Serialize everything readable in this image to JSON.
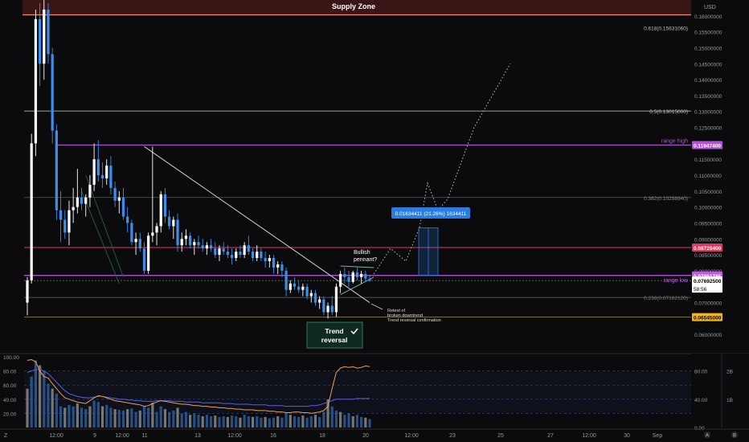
{
  "colors": {
    "background": "#0b0b0d",
    "candle_up": "#ffffff",
    "candle_down": "#3c8ee6",
    "supply_zone": "#3a1516",
    "supply_line": "#f28b82",
    "range_high": "#b452d6",
    "target_red": "#e0365f",
    "range_low": "#c258e6",
    "price_tag": "#ffffff",
    "yellow_tag": "#f0b429",
    "measure_blue": "#2a7de1",
    "trend_green": "#1f5b45",
    "rsi_orange": "#f0a04b",
    "rsi_blue": "#5a5fe0"
  },
  "chart_data": {
    "type": "candlestick",
    "title": "",
    "currency_label": "USD",
    "ylim": [
      0.055,
      0.165
    ],
    "y_ticks": [
      "0.06000000",
      "0.06500000",
      "0.07000000",
      "0.07500000",
      "0.08000000",
      "0.08500000",
      "0.09000000",
      "0.09500000",
      "0.10000000",
      "0.10500000",
      "0.11000000",
      "0.11500000",
      "0.12000000",
      "0.12500000",
      "0.13000000",
      "0.13500000",
      "0.14000000",
      "0.14500000",
      "0.15000000",
      "0.15500000",
      "0.16000000"
    ],
    "x_ticks": [
      "12:00",
      "9",
      "12:00",
      "11",
      "13",
      "12:00",
      "16",
      "18",
      "20",
      "12:00",
      "23",
      "25",
      "27",
      "12:00",
      "30",
      "Sep"
    ],
    "candles": [
      {
        "o": 0.07,
        "h": 0.078,
        "l": 0.066,
        "c": 0.077
      },
      {
        "o": 0.077,
        "h": 0.123,
        "l": 0.076,
        "c": 0.12
      },
      {
        "o": 0.12,
        "h": 0.162,
        "l": 0.116,
        "c": 0.159
      },
      {
        "o": 0.159,
        "h": 0.164,
        "l": 0.138,
        "c": 0.145
      },
      {
        "o": 0.145,
        "h": 0.165,
        "l": 0.14,
        "c": 0.162
      },
      {
        "o": 0.162,
        "h": 0.164,
        "l": 0.145,
        "c": 0.148
      },
      {
        "o": 0.148,
        "h": 0.15,
        "l": 0.12,
        "c": 0.124
      },
      {
        "o": 0.124,
        "h": 0.126,
        "l": 0.096,
        "c": 0.099
      },
      {
        "o": 0.099,
        "h": 0.105,
        "l": 0.089,
        "c": 0.096
      },
      {
        "o": 0.096,
        "h": 0.099,
        "l": 0.09,
        "c": 0.092
      },
      {
        "o": 0.092,
        "h": 0.102,
        "l": 0.088,
        "c": 0.099
      },
      {
        "o": 0.099,
        "h": 0.106,
        "l": 0.095,
        "c": 0.1
      },
      {
        "o": 0.1,
        "h": 0.112,
        "l": 0.098,
        "c": 0.103
      },
      {
        "o": 0.103,
        "h": 0.106,
        "l": 0.099,
        "c": 0.101
      },
      {
        "o": 0.101,
        "h": 0.104,
        "l": 0.097,
        "c": 0.103
      },
      {
        "o": 0.103,
        "h": 0.11,
        "l": 0.1,
        "c": 0.107
      },
      {
        "o": 0.107,
        "h": 0.12,
        "l": 0.105,
        "c": 0.115
      },
      {
        "o": 0.115,
        "h": 0.121,
        "l": 0.108,
        "c": 0.11
      },
      {
        "o": 0.11,
        "h": 0.114,
        "l": 0.106,
        "c": 0.109
      },
      {
        "o": 0.109,
        "h": 0.115,
        "l": 0.107,
        "c": 0.113
      },
      {
        "o": 0.113,
        "h": 0.116,
        "l": 0.104,
        "c": 0.106
      },
      {
        "o": 0.106,
        "h": 0.108,
        "l": 0.1,
        "c": 0.102
      },
      {
        "o": 0.102,
        "h": 0.105,
        "l": 0.098,
        "c": 0.103
      },
      {
        "o": 0.103,
        "h": 0.106,
        "l": 0.096,
        "c": 0.097
      },
      {
        "o": 0.097,
        "h": 0.1,
        "l": 0.092,
        "c": 0.095
      },
      {
        "o": 0.095,
        "h": 0.096,
        "l": 0.088,
        "c": 0.089
      },
      {
        "o": 0.089,
        "h": 0.092,
        "l": 0.085,
        "c": 0.09
      },
      {
        "o": 0.09,
        "h": 0.092,
        "l": 0.086,
        "c": 0.087
      },
      {
        "o": 0.087,
        "h": 0.089,
        "l": 0.079,
        "c": 0.08
      },
      {
        "o": 0.08,
        "h": 0.092,
        "l": 0.079,
        "c": 0.091
      },
      {
        "o": 0.091,
        "h": 0.119,
        "l": 0.089,
        "c": 0.092
      },
      {
        "o": 0.092,
        "h": 0.095,
        "l": 0.088,
        "c": 0.094
      },
      {
        "o": 0.094,
        "h": 0.105,
        "l": 0.092,
        "c": 0.104
      },
      {
        "o": 0.104,
        "h": 0.106,
        "l": 0.095,
        "c": 0.097
      },
      {
        "o": 0.097,
        "h": 0.099,
        "l": 0.093,
        "c": 0.094
      },
      {
        "o": 0.094,
        "h": 0.097,
        "l": 0.09,
        "c": 0.096
      },
      {
        "o": 0.096,
        "h": 0.098,
        "l": 0.086,
        "c": 0.088
      },
      {
        "o": 0.088,
        "h": 0.092,
        "l": 0.086,
        "c": 0.09
      },
      {
        "o": 0.09,
        "h": 0.093,
        "l": 0.088,
        "c": 0.091
      },
      {
        "o": 0.091,
        "h": 0.092,
        "l": 0.087,
        "c": 0.088
      },
      {
        "o": 0.088,
        "h": 0.09,
        "l": 0.085,
        "c": 0.089
      },
      {
        "o": 0.089,
        "h": 0.091,
        "l": 0.087,
        "c": 0.088
      },
      {
        "o": 0.088,
        "h": 0.09,
        "l": 0.086,
        "c": 0.087
      },
      {
        "o": 0.087,
        "h": 0.089,
        "l": 0.085,
        "c": 0.088
      },
      {
        "o": 0.088,
        "h": 0.09,
        "l": 0.086,
        "c": 0.087
      },
      {
        "o": 0.087,
        "h": 0.089,
        "l": 0.084,
        "c": 0.085
      },
      {
        "o": 0.085,
        "h": 0.088,
        "l": 0.083,
        "c": 0.087
      },
      {
        "o": 0.087,
        "h": 0.089,
        "l": 0.085,
        "c": 0.086
      },
      {
        "o": 0.086,
        "h": 0.088,
        "l": 0.084,
        "c": 0.085
      },
      {
        "o": 0.085,
        "h": 0.087,
        "l": 0.082,
        "c": 0.084
      },
      {
        "o": 0.084,
        "h": 0.087,
        "l": 0.083,
        "c": 0.086
      },
      {
        "o": 0.086,
        "h": 0.088,
        "l": 0.084,
        "c": 0.085
      },
      {
        "o": 0.085,
        "h": 0.089,
        "l": 0.084,
        "c": 0.088
      },
      {
        "o": 0.088,
        "h": 0.091,
        "l": 0.085,
        "c": 0.086
      },
      {
        "o": 0.086,
        "h": 0.087,
        "l": 0.083,
        "c": 0.084
      },
      {
        "o": 0.084,
        "h": 0.088,
        "l": 0.083,
        "c": 0.086
      },
      {
        "o": 0.086,
        "h": 0.087,
        "l": 0.083,
        "c": 0.084
      },
      {
        "o": 0.084,
        "h": 0.086,
        "l": 0.081,
        "c": 0.083
      },
      {
        "o": 0.083,
        "h": 0.085,
        "l": 0.081,
        "c": 0.084
      },
      {
        "o": 0.084,
        "h": 0.085,
        "l": 0.079,
        "c": 0.081
      },
      {
        "o": 0.081,
        "h": 0.083,
        "l": 0.079,
        "c": 0.082
      },
      {
        "o": 0.082,
        "h": 0.083,
        "l": 0.078,
        "c": 0.08
      },
      {
        "o": 0.08,
        "h": 0.081,
        "l": 0.072,
        "c": 0.074
      },
      {
        "o": 0.074,
        "h": 0.077,
        "l": 0.073,
        "c": 0.076
      },
      {
        "o": 0.076,
        "h": 0.078,
        "l": 0.074,
        "c": 0.075
      },
      {
        "o": 0.075,
        "h": 0.077,
        "l": 0.073,
        "c": 0.074
      },
      {
        "o": 0.074,
        "h": 0.076,
        "l": 0.072,
        "c": 0.075
      },
      {
        "o": 0.075,
        "h": 0.076,
        "l": 0.071,
        "c": 0.072
      },
      {
        "o": 0.072,
        "h": 0.074,
        "l": 0.07,
        "c": 0.073
      },
      {
        "o": 0.073,
        "h": 0.074,
        "l": 0.069,
        "c": 0.07
      },
      {
        "o": 0.07,
        "h": 0.072,
        "l": 0.068,
        "c": 0.071
      },
      {
        "o": 0.071,
        "h": 0.072,
        "l": 0.066,
        "c": 0.067
      },
      {
        "o": 0.067,
        "h": 0.07,
        "l": 0.065,
        "c": 0.069
      },
      {
        "o": 0.069,
        "h": 0.072,
        "l": 0.066,
        "c": 0.067
      },
      {
        "o": 0.067,
        "h": 0.076,
        "l": 0.0655,
        "c": 0.075
      },
      {
        "o": 0.075,
        "h": 0.08,
        "l": 0.073,
        "c": 0.079
      },
      {
        "o": 0.079,
        "h": 0.081,
        "l": 0.076,
        "c": 0.078
      },
      {
        "o": 0.078,
        "h": 0.08,
        "l": 0.075,
        "c": 0.0765
      },
      {
        "o": 0.0765,
        "h": 0.08,
        "l": 0.076,
        "c": 0.0795
      },
      {
        "o": 0.0795,
        "h": 0.081,
        "l": 0.077,
        "c": 0.078
      },
      {
        "o": 0.078,
        "h": 0.08,
        "l": 0.076,
        "c": 0.079
      },
      {
        "o": 0.079,
        "h": 0.08,
        "l": 0.0765,
        "c": 0.0775
      },
      {
        "o": 0.0775,
        "h": 0.0785,
        "l": 0.0765,
        "c": 0.0769
      }
    ],
    "levels": {
      "supply_zone": {
        "label": "Supply Zone",
        "low": 0.1563,
        "high": 0.165
      },
      "fib_0618": {
        "label": "0.618(0.15631060)",
        "price": 0.1563106
      },
      "fib_05": {
        "label": "0.5(0.13015000)",
        "price": 0.13015
      },
      "range_high": {
        "label": "range high",
        "tag": "0.11947400",
        "price": 0.119474
      },
      "fib_0382": {
        "label": "0.382(0.10298940)",
        "price": 0.1029894
      },
      "target": {
        "tag": "0.08729400",
        "price": 0.087294
      },
      "range_low": {
        "label": "range low",
        "tag": "0.07851785",
        "price": 0.07851785
      },
      "current": {
        "tag": "0.07692500",
        "countdown": "58:56",
        "price": 0.076925
      },
      "fib_0236": {
        "label": "0.236(0.07162120)",
        "price": 0.0716212
      },
      "support": {
        "tag": "0.06545000",
        "price": 0.06545
      }
    },
    "annotations": {
      "measure": "0.01634411 (21.26%) 1634411",
      "bullish": "Bullish pennant?",
      "retest_1": "Retest of",
      "retest_2": "broken downtrend",
      "retest_3": "Trend reversal confirmation",
      "reversal_1": "Trend",
      "reversal_2": "reversal"
    },
    "indicator": {
      "y_ticks": [
        "100.00",
        "80.00",
        "60.00",
        "40.00",
        "20.00"
      ],
      "right_ticks": [
        "80.00",
        "40.00",
        "0.00"
      ],
      "far_ticks": [
        "2B",
        "1B"
      ],
      "rsi": [
        95,
        96,
        93,
        80,
        72,
        70,
        62,
        55,
        48,
        42,
        40,
        38,
        36,
        35,
        34,
        38,
        42,
        45,
        44,
        42,
        40,
        38,
        37,
        36,
        35,
        34,
        33,
        32,
        30,
        31,
        34,
        36,
        38,
        37,
        36,
        35,
        34,
        33,
        33,
        32,
        31,
        31,
        30,
        30,
        29,
        29,
        28,
        28,
        27,
        27,
        26,
        26,
        25,
        25,
        25,
        24,
        24,
        24,
        23,
        23,
        22,
        22,
        21,
        21,
        22,
        22,
        21,
        21,
        20,
        21,
        22,
        24,
        30,
        55,
        78,
        84,
        86,
        85,
        86,
        84,
        85,
        87,
        86
      ],
      "rsi_blue": [
        78,
        80,
        82,
        82,
        80,
        76,
        70,
        64,
        58,
        52,
        48,
        46,
        44,
        43,
        42,
        42,
        43,
        44,
        44,
        43,
        42,
        41,
        40,
        40,
        39,
        39,
        38,
        38,
        37,
        37,
        37,
        38,
        38,
        38,
        38,
        37,
        37,
        37,
        36,
        36,
        36,
        36,
        35,
        35,
        35,
        35,
        35,
        34,
        34,
        34,
        33,
        33,
        33,
        33,
        32,
        32,
        32,
        32,
        31,
        31,
        31,
        31,
        30,
        30,
        30,
        30,
        30,
        30,
        31,
        31,
        32,
        34,
        36,
        38,
        40,
        40,
        40,
        40,
        40,
        41,
        41,
        41,
        41
      ],
      "volume": [
        55,
        72,
        95,
        88,
        80,
        62,
        55,
        48,
        30,
        28,
        32,
        30,
        34,
        28,
        26,
        30,
        38,
        36,
        30,
        32,
        28,
        26,
        25,
        24,
        26,
        27,
        22,
        24,
        30,
        28,
        35,
        22,
        30,
        26,
        22,
        24,
        28,
        20,
        22,
        18,
        20,
        18,
        16,
        18,
        16,
        17,
        15,
        16,
        15,
        17,
        16,
        14,
        18,
        16,
        15,
        16,
        14,
        15,
        13,
        14,
        16,
        14,
        20,
        18,
        16,
        15,
        17,
        14,
        16,
        18,
        15,
        22,
        40,
        30,
        24,
        22,
        18,
        20,
        16,
        18,
        15,
        14,
        12
      ]
    }
  },
  "toolbar": {
    "left_tools": [
      "Z"
    ],
    "right_tools": [
      "A",
      "B"
    ]
  }
}
